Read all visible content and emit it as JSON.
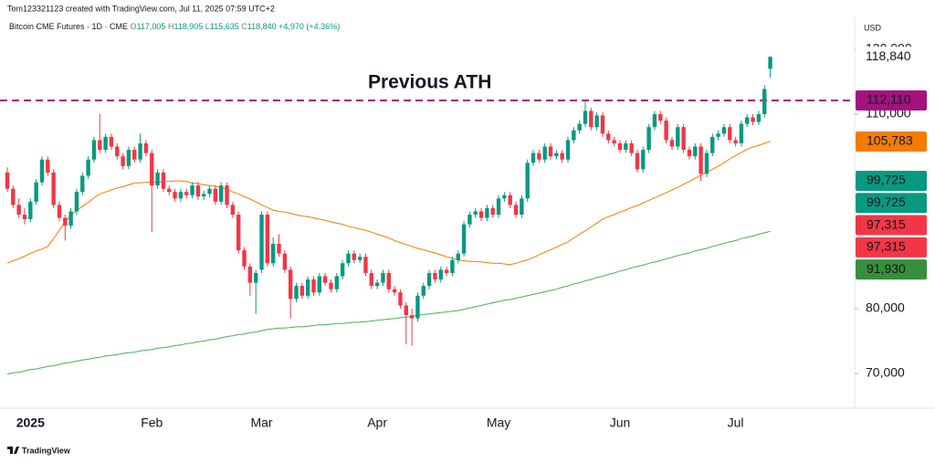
{
  "header": {
    "credit": "Tom123321123 created with TradingView.com, Jul 11, 2025 07:59 UTC+2",
    "symbol": "Bitcoin CME Futures · 1D · CME",
    "ohlc": [
      {
        "key": "O",
        "value": "117,005"
      },
      {
        "key": "H",
        "value": "118,905"
      },
      {
        "key": "L",
        "value": "115,635"
      },
      {
        "key": "C",
        "value": "118,840"
      }
    ],
    "change": "+4,970 (+4.36%)"
  },
  "footer": {
    "brand": "TradingView"
  },
  "chart_data": {
    "type": "candlestick",
    "currency": "USD",
    "up_color": "#089981",
    "down_color": "#f23645",
    "ylim": [
      64930,
      124790
    ],
    "yticks": [
      {
        "value": 70000,
        "label": "70,000"
      },
      {
        "value": 80000,
        "label": "80,000"
      },
      {
        "value": 110000,
        "label": "110,000"
      },
      {
        "value": 120000,
        "label": "120,000"
      }
    ],
    "categories": [
      null,
      null,
      null,
      null,
      "2025",
      null,
      null,
      null,
      null,
      null,
      null,
      null,
      null,
      null,
      null,
      null,
      null,
      null,
      null,
      null,
      null,
      null,
      null,
      null,
      null,
      "Feb",
      null,
      null,
      null,
      null,
      null,
      null,
      null,
      null,
      null,
      null,
      null,
      null,
      null,
      null,
      null,
      null,
      null,
      null,
      "Mar",
      null,
      null,
      null,
      null,
      null,
      null,
      null,
      null,
      null,
      null,
      null,
      null,
      null,
      null,
      null,
      null,
      null,
      null,
      null,
      "Apr",
      null,
      null,
      null,
      null,
      null,
      null,
      null,
      null,
      null,
      null,
      null,
      null,
      null,
      null,
      null,
      null,
      null,
      null,
      null,
      null,
      "May",
      null,
      null,
      null,
      null,
      null,
      null,
      null,
      null,
      null,
      null,
      null,
      null,
      null,
      null,
      null,
      null,
      null,
      null,
      null,
      null,
      "Jun",
      null,
      null,
      null,
      null,
      null,
      null,
      null,
      null,
      null,
      null,
      null,
      null,
      null,
      null,
      null,
      null,
      null,
      null,
      null,
      "Jul",
      null,
      null,
      null,
      null,
      null,
      null
    ],
    "ohlc": [
      [
        101000,
        101800,
        98000,
        98500
      ],
      [
        98500,
        99000,
        95500,
        96000
      ],
      [
        96000,
        97000,
        94000,
        94500
      ],
      [
        94500,
        95500,
        93000,
        93800
      ],
      [
        93800,
        97000,
        93300,
        96500
      ],
      [
        96500,
        100000,
        96000,
        99500
      ],
      [
        99500,
        103500,
        99000,
        103000
      ],
      [
        103000,
        103500,
        100500,
        101000
      ],
      [
        101000,
        101500,
        95500,
        96000
      ],
      [
        96000,
        96500,
        93500,
        94000
      ],
      [
        94000,
        94500,
        90500,
        92800
      ],
      [
        92800,
        95500,
        92300,
        95000
      ],
      [
        95000,
        98500,
        94500,
        98000
      ],
      [
        98000,
        101000,
        97500,
        100500
      ],
      [
        100500,
        103500,
        100000,
        103000
      ],
      [
        103000,
        106500,
        102500,
        106000
      ],
      [
        106000,
        110000,
        104000,
        104500
      ],
      [
        104500,
        107000,
        104000,
        106500
      ],
      [
        106500,
        107000,
        104500,
        105000
      ],
      [
        105000,
        105500,
        103000,
        103500
      ],
      [
        103500,
        104000,
        101500,
        102000
      ],
      [
        102000,
        105000,
        101500,
        104500
      ],
      [
        104500,
        105000,
        102500,
        103000
      ],
      [
        103000,
        107000,
        102500,
        105500
      ],
      [
        105500,
        106000,
        103500,
        104000
      ],
      [
        104000,
        104500,
        91800,
        99000
      ],
      [
        99000,
        101500,
        98500,
        101000
      ],
      [
        101000,
        101500,
        98000,
        98500
      ],
      [
        98500,
        99000,
        97500,
        98000
      ],
      [
        98000,
        98500,
        96500,
        97000
      ],
      [
        97000,
        98500,
        96500,
        98000
      ],
      [
        98000,
        98500,
        97000,
        97500
      ],
      [
        97500,
        99500,
        97000,
        99000
      ],
      [
        99000,
        99500,
        96800,
        97300
      ],
      [
        97300,
        98200,
        96800,
        97700
      ],
      [
        97700,
        99000,
        97200,
        98500
      ],
      [
        98500,
        99000,
        96000,
        96500
      ],
      [
        96500,
        99500,
        96000,
        99000
      ],
      [
        99000,
        99500,
        95500,
        96000
      ],
      [
        96000,
        96500,
        94000,
        94500
      ],
      [
        94500,
        95000,
        88500,
        89000
      ],
      [
        89000,
        89500,
        86000,
        86500
      ],
      [
        86500,
        87000,
        82000,
        84000
      ],
      [
        84000,
        86000,
        79200,
        85500
      ],
      [
        86000,
        95000,
        85500,
        94500
      ],
      [
        94500,
        95000,
        86500,
        87000
      ],
      [
        87000,
        91000,
        86500,
        90000
      ],
      [
        90000,
        91500,
        88000,
        88500
      ],
      [
        88500,
        89000,
        85500,
        86000
      ],
      [
        86000,
        86500,
        78500,
        81500
      ],
      [
        81500,
        84000,
        81000,
        83500
      ],
      [
        83500,
        84000,
        81500,
        82000
      ],
      [
        82000,
        85000,
        81500,
        84500
      ],
      [
        84500,
        85000,
        82000,
        82500
      ],
      [
        82500,
        85500,
        82000,
        85000
      ],
      [
        85000,
        85500,
        83500,
        84000
      ],
      [
        84000,
        84500,
        82500,
        83000
      ],
      [
        83000,
        85500,
        82500,
        85000
      ],
      [
        85000,
        87500,
        84500,
        87000
      ],
      [
        87000,
        89000,
        86500,
        88500
      ],
      [
        88500,
        89000,
        87000,
        87500
      ],
      [
        87500,
        88500,
        87000,
        88000
      ],
      [
        88000,
        88500,
        85000,
        85500
      ],
      [
        85500,
        86000,
        83000,
        83500
      ],
      [
        83500,
        84500,
        83000,
        84000
      ],
      [
        84000,
        86000,
        83500,
        85500
      ],
      [
        85500,
        86000,
        82500,
        83000
      ],
      [
        83000,
        83500,
        82000,
        82500
      ],
      [
        82500,
        83000,
        80000,
        80500
      ],
      [
        80500,
        81000,
        74500,
        79000
      ],
      [
        79000,
        80000,
        74300,
        78500
      ],
      [
        78500,
        82500,
        78000,
        82000
      ],
      [
        82000,
        84000,
        81500,
        83500
      ],
      [
        83500,
        86000,
        83000,
        85500
      ],
      [
        85500,
        86000,
        84000,
        84500
      ],
      [
        84500,
        86500,
        84000,
        86000
      ],
      [
        86000,
        86500,
        85000,
        85500
      ],
      [
        85500,
        88000,
        85000,
        87500
      ],
      [
        87500,
        89000,
        87000,
        88500
      ],
      [
        88500,
        93500,
        88000,
        93000
      ],
      [
        93000,
        95000,
        92500,
        94500
      ],
      [
        94500,
        95500,
        94000,
        95000
      ],
      [
        95000,
        95500,
        93500,
        94000
      ],
      [
        94000,
        96000,
        93500,
        95500
      ],
      [
        95500,
        96000,
        94000,
        94500
      ],
      [
        94500,
        97500,
        94000,
        97000
      ],
      [
        97000,
        98000,
        96500,
        97500
      ],
      [
        97500,
        98000,
        95500,
        96000
      ],
      [
        96000,
        96500,
        94000,
        94500
      ],
      [
        94500,
        97500,
        94000,
        97000
      ],
      [
        97000,
        103000,
        96500,
        102500
      ],
      [
        102500,
        104500,
        102000,
        104000
      ],
      [
        104000,
        104500,
        102500,
        103000
      ],
      [
        103000,
        105500,
        102500,
        105000
      ],
      [
        105000,
        105500,
        103000,
        103500
      ],
      [
        103500,
        104500,
        103000,
        104000
      ],
      [
        104000,
        104500,
        102500,
        103000
      ],
      [
        103000,
        106500,
        102500,
        106000
      ],
      [
        106000,
        108000,
        105500,
        107500
      ],
      [
        107500,
        109000,
        107000,
        108500
      ],
      [
        108500,
        112100,
        108000,
        110500
      ],
      [
        110500,
        111000,
        107500,
        108000
      ],
      [
        108000,
        110300,
        107500,
        109800
      ],
      [
        109800,
        110300,
        106500,
        107000
      ],
      [
        107000,
        107500,
        105500,
        106000
      ],
      [
        106000,
        106500,
        105000,
        105500
      ],
      [
        105500,
        106000,
        104000,
        104500
      ],
      [
        104500,
        106000,
        104000,
        105500
      ],
      [
        105500,
        106000,
        103500,
        104000
      ],
      [
        104000,
        104500,
        101000,
        101500
      ],
      [
        101500,
        105000,
        101000,
        104500
      ],
      [
        104500,
        108500,
        104000,
        108000
      ],
      [
        108000,
        110500,
        107500,
        110000
      ],
      [
        110000,
        110500,
        108500,
        109000
      ],
      [
        109000,
        109500,
        105500,
        106000
      ],
      [
        106000,
        106500,
        104500,
        105000
      ],
      [
        105000,
        108500,
        104500,
        108000
      ],
      [
        108000,
        108500,
        104000,
        104500
      ],
      [
        104500,
        105000,
        103000,
        103500
      ],
      [
        103500,
        105500,
        103000,
        105000
      ],
      [
        105000,
        105500,
        99700,
        100800
      ],
      [
        100800,
        104500,
        100300,
        104000
      ],
      [
        104000,
        107000,
        103500,
        106500
      ],
      [
        106500,
        107500,
        106000,
        107000
      ],
      [
        107000,
        108500,
        106500,
        108000
      ],
      [
        108000,
        108500,
        105500,
        106000
      ],
      [
        106000,
        106500,
        105000,
        105500
      ],
      [
        105500,
        109000,
        105000,
        108500
      ],
      [
        108500,
        110000,
        108000,
        109500
      ],
      [
        109500,
        110000,
        108300,
        108800
      ],
      [
        108800,
        110500,
        108300,
        110000
      ],
      [
        110000,
        114500,
        109500,
        113870
      ],
      [
        117005,
        118905,
        115635,
        118840
      ]
    ],
    "moving_averages": [
      {
        "color": "#f57c00",
        "values": [
          87000,
          87400,
          87700,
          88100,
          88500,
          88900,
          89200,
          89600,
          90800,
          92100,
          93300,
          94500,
          95100,
          95800,
          96400,
          97100,
          97700,
          98000,
          98300,
          98600,
          98800,
          99100,
          99400,
          99400,
          99500,
          99500,
          99500,
          99600,
          99600,
          99700,
          99700,
          99600,
          99400,
          99300,
          99100,
          99000,
          98900,
          98700,
          98400,
          98000,
          97700,
          97300,
          96900,
          96500,
          96000,
          95600,
          95200,
          95000,
          94900,
          94700,
          94500,
          94300,
          94200,
          94000,
          93800,
          93600,
          93400,
          93200,
          93000,
          92700,
          92500,
          92300,
          92100,
          91800,
          91500,
          91200,
          90900,
          90500,
          90200,
          89900,
          89600,
          89300,
          89100,
          88800,
          88600,
          88300,
          88000,
          87800,
          87500,
          87400,
          87300,
          87300,
          87200,
          87100,
          87000,
          87000,
          86900,
          86800,
          87000,
          87300,
          87500,
          87900,
          88300,
          88700,
          89100,
          89500,
          89900,
          90300,
          90900,
          91500,
          92000,
          92600,
          93200,
          93800,
          94200,
          94500,
          94900,
          95200,
          95600,
          95900,
          96300,
          96700,
          97100,
          97500,
          97900,
          98300,
          98700,
          99200,
          99600,
          100100,
          100600,
          101000,
          101500,
          102000,
          102500,
          103100,
          103600,
          104100,
          104600,
          104900,
          105200,
          105500,
          105783
        ]
      },
      {
        "color": "#4caf50",
        "values": [
          69900,
          70100,
          70200,
          70400,
          70600,
          70700,
          70900,
          71100,
          71200,
          71400,
          71600,
          71700,
          71900,
          72100,
          72200,
          72400,
          72500,
          72700,
          72800,
          72900,
          73100,
          73200,
          73300,
          73500,
          73600,
          73700,
          73900,
          74000,
          74100,
          74300,
          74400,
          74600,
          74700,
          74900,
          75000,
          75200,
          75300,
          75500,
          75700,
          75800,
          76000,
          76100,
          76300,
          76400,
          76600,
          76800,
          76900,
          77000,
          77000,
          77100,
          77200,
          77200,
          77300,
          77400,
          77500,
          77500,
          77600,
          77700,
          77700,
          77800,
          77900,
          77900,
          78000,
          78100,
          78200,
          78300,
          78400,
          78500,
          78600,
          78700,
          78800,
          79000,
          79100,
          79200,
          79300,
          79400,
          79500,
          79600,
          79700,
          79900,
          80100,
          80300,
          80500,
          80700,
          80900,
          81100,
          81300,
          81400,
          81600,
          81800,
          82000,
          82200,
          82400,
          82600,
          82800,
          83000,
          83300,
          83500,
          83800,
          84000,
          84300,
          84500,
          84800,
          85000,
          85300,
          85500,
          85800,
          86000,
          86300,
          86500,
          86700,
          87000,
          87200,
          87400,
          87700,
          87900,
          88200,
          88400,
          88600,
          88900,
          89100,
          89300,
          89600,
          89800,
          90100,
          90300,
          90500,
          90800,
          91000,
          91200,
          91500,
          91700,
          91930
        ]
      }
    ],
    "annotation": {
      "text": "Previous ATH",
      "value": 112110,
      "color": "#a3127f"
    },
    "price_labels": [
      {
        "value": 118840,
        "label": "118,840",
        "color": null
      },
      {
        "value": 112110,
        "label": "112,110",
        "color": "#a3127f"
      },
      {
        "value": 105783,
        "label": "105,783",
        "color": "#f57c00"
      },
      {
        "value": 99725,
        "label": "99,725",
        "color": "#089981"
      },
      {
        "value": 99725,
        "label": "99,725",
        "color": "#089981"
      },
      {
        "value": 97315,
        "label": "97,315",
        "color": "#f23645"
      },
      {
        "value": 97315,
        "label": "97,315",
        "color": "#f23645"
      },
      {
        "value": 91930,
        "label": "91,930",
        "color": "#388e3c"
      }
    ]
  }
}
